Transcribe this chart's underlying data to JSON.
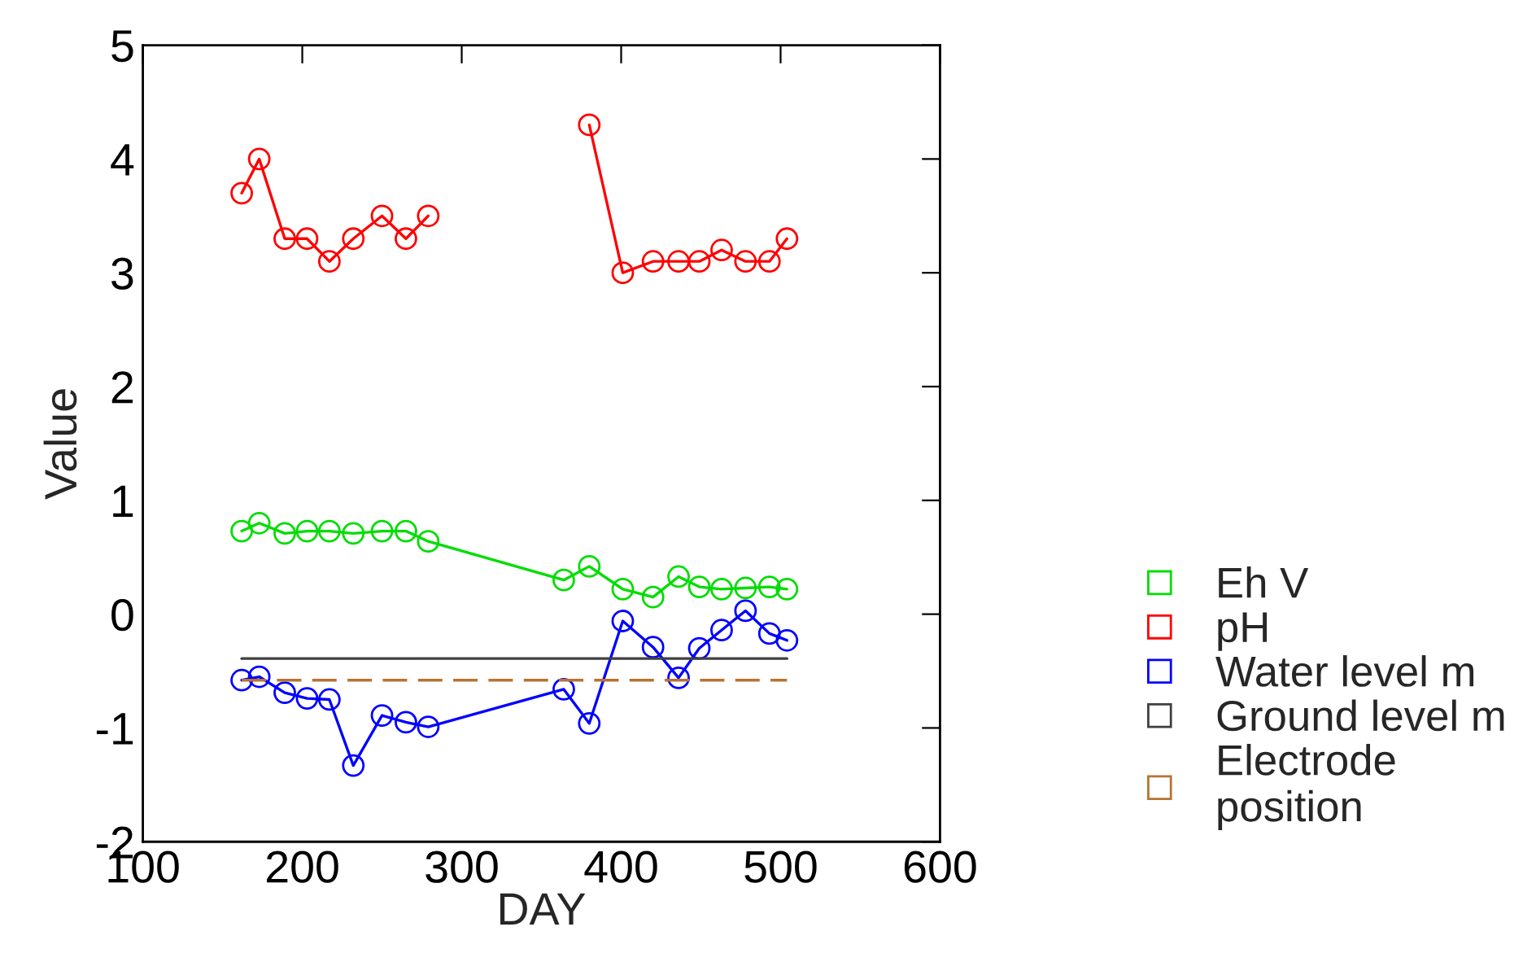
{
  "chart_data": {
    "type": "line",
    "xlabel": "DAY",
    "ylabel": "Value",
    "x": [
      162,
      173,
      189,
      203,
      217,
      232,
      250,
      265,
      279,
      364,
      380,
      401,
      420,
      436,
      449,
      463,
      478,
      493,
      504
    ],
    "series": [
      {
        "name": "Eh V",
        "color": "#00dd00",
        "marker": "circle",
        "values": [
          0.73,
          0.8,
          0.71,
          0.73,
          0.73,
          0.71,
          0.73,
          0.73,
          0.64,
          0.3,
          0.42,
          0.22,
          0.15,
          0.33,
          0.24,
          0.22,
          0.23,
          0.24,
          0.22
        ]
      },
      {
        "name": "pH",
        "color": "#ff0000",
        "marker": "circle",
        "values": [
          3.7,
          4.0,
          3.3,
          3.3,
          3.1,
          3.3,
          3.5,
          3.3,
          3.5,
          null,
          4.3,
          3.0,
          3.1,
          3.1,
          3.1,
          3.2,
          3.1,
          3.1,
          3.3
        ]
      },
      {
        "name": "Water level m",
        "color": "#0000ff",
        "marker": "circle",
        "values": [
          -0.58,
          -0.55,
          -0.69,
          -0.74,
          -0.75,
          -1.33,
          -0.89,
          -0.95,
          -0.99,
          -0.66,
          -0.96,
          -0.06,
          -0.29,
          -0.56,
          -0.3,
          -0.14,
          0.03,
          -0.17,
          -0.23
        ]
      },
      {
        "name": "Ground level m",
        "color": "#404040",
        "marker": "none",
        "line_style": "solid",
        "values": [
          -0.39,
          -0.39,
          -0.39,
          -0.39,
          -0.39,
          -0.39,
          -0.39,
          -0.39,
          -0.39,
          -0.39,
          -0.39,
          -0.39,
          -0.39,
          -0.39,
          -0.39,
          -0.39,
          -0.39,
          -0.39,
          -0.39
        ]
      },
      {
        "name": "Electrode position",
        "color": "#b87333",
        "marker": "none",
        "line_style": "dashed",
        "values": [
          -0.58,
          -0.58,
          -0.58,
          -0.58,
          -0.58,
          -0.58,
          -0.58,
          -0.58,
          -0.58,
          -0.58,
          -0.58,
          -0.58,
          -0.58,
          -0.58,
          -0.58,
          -0.58,
          -0.58,
          -0.58,
          -0.58
        ]
      }
    ],
    "xlim": [
      100,
      600
    ],
    "xticks": [
      100,
      200,
      300,
      400,
      500,
      600
    ],
    "ylim": [
      -2,
      5
    ],
    "yticks": [
      -2,
      -1,
      0,
      1,
      2,
      3,
      4,
      5
    ],
    "grid": false,
    "legend": "right"
  }
}
